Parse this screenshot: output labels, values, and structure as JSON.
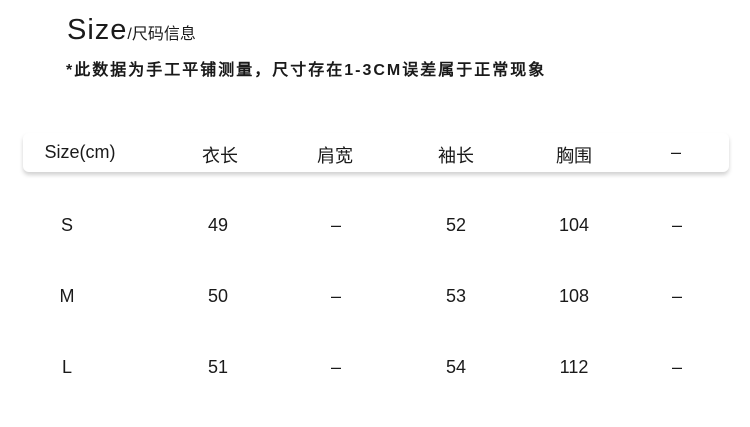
{
  "title": {
    "main": "Size",
    "sub": "/尺码信息"
  },
  "note": "*此数据为手工平铺测量，尺寸存在1-3CM误差属于正常现象",
  "table": {
    "headers": [
      "Size(cm)",
      "衣长",
      "肩宽",
      "袖长",
      "胸围",
      "–"
    ],
    "rows": [
      [
        "S",
        "49",
        "–",
        "52",
        "104",
        "–"
      ],
      [
        "M",
        "50",
        "–",
        "53",
        "108",
        "–"
      ],
      [
        "L",
        "51",
        "–",
        "54",
        "112",
        "–"
      ]
    ]
  }
}
